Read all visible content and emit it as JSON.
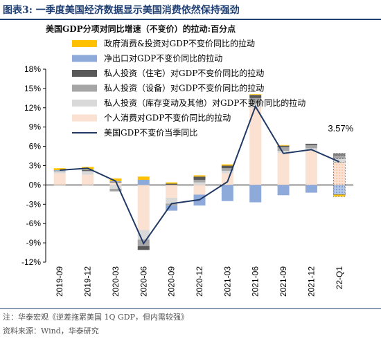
{
  "figure": {
    "title": "图表3:  一季度美国经济数据显示美国消费依然保持强劲",
    "note": "注：华泰宏观《逆差拖累美国 1Q GDP，但内需较强》",
    "source": "资料来源：Wind，华泰研究"
  },
  "chart_data": {
    "type": "bar",
    "title": "美国GDP分项对同比增速（不变价）的拉动:百分点",
    "stacked": true,
    "categories": [
      "2019-09",
      "2019-12",
      "2020-03",
      "2020-06",
      "2020-09",
      "2020-12",
      "2021-03",
      "2021-06",
      "2021-09",
      "2021-12",
      "22-Q1"
    ],
    "ylim": [
      -12,
      18
    ],
    "yticks": [
      "18%",
      "15%",
      "12%",
      "9%",
      "6%",
      "3%",
      "0%",
      "-3%",
      "-6%",
      "-9%",
      "-12%"
    ],
    "ytick_values": [
      18,
      15,
      12,
      9,
      6,
      3,
      0,
      -3,
      -6,
      -9,
      -12
    ],
    "series": [
      {
        "name": "个人消费对GDP不变价同比的拉动",
        "color": "#fbe1d1",
        "values": [
          1.8,
          1.6,
          0.4,
          -7.0,
          -2.0,
          -1.5,
          1.8,
          12.0,
          5.0,
          5.3,
          3.5
        ]
      },
      {
        "name": "私人投资（库存变动及其他）对GDP不变价同比的拉动",
        "color": "#d9d9d9",
        "values": [
          0.3,
          0.5,
          -0.6,
          -1.5,
          -0.9,
          0.4,
          0.4,
          0.5,
          0.3,
          0.4,
          0.6
        ]
      },
      {
        "name": "私人投资（设备）对GDP不变价同比的拉动",
        "color": "#a6a6a6",
        "values": [
          0.1,
          0.1,
          -0.4,
          -1.0,
          -0.3,
          0.4,
          0.4,
          1.0,
          0.6,
          0.5,
          0.5
        ]
      },
      {
        "name": "私人投资（住宅）对GDP不变价同比的拉动",
        "color": "#595959",
        "values": [
          0.0,
          0.1,
          0.1,
          -0.6,
          0.2,
          0.5,
          0.4,
          0.5,
          0.2,
          0.2,
          0.3
        ]
      },
      {
        "name": "净出口对GDP不变价同比的拉动",
        "color": "#8eaadb",
        "values": [
          0.1,
          0.1,
          0.1,
          0.8,
          -0.8,
          -1.7,
          -2.5,
          -2.7,
          -1.6,
          -1.2,
          -1.5
        ]
      },
      {
        "name": "政府消费&投资对GDP不变价同比的拉动",
        "color": "#ffc000",
        "values": [
          0.3,
          0.4,
          0.4,
          0.5,
          0.2,
          0.2,
          0.2,
          0.1,
          0.1,
          0.0,
          -0.3
        ]
      }
    ],
    "line": {
      "name": "美国GDP不变价当季同比",
      "color": "#1f3864",
      "values": [
        2.3,
        2.6,
        0.6,
        -9.1,
        -2.9,
        -2.3,
        0.5,
        12.2,
        4.9,
        5.5,
        3.6
      ]
    },
    "annotation": "3.57%",
    "legend_position": "top-left"
  }
}
